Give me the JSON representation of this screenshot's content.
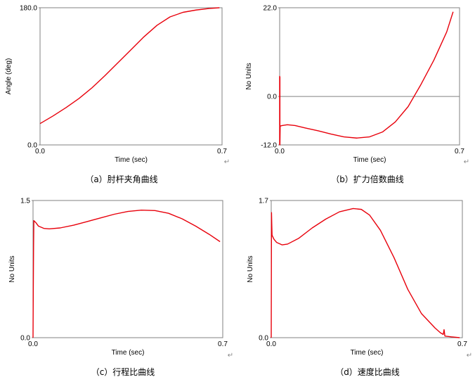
{
  "chart_data": [
    {
      "type": "line",
      "title": "",
      "xlabel": "Time (sec)",
      "ylabel": "Angle (deg)",
      "xlim": [
        0.0,
        0.7
      ],
      "ylim": [
        0.0,
        180.0
      ],
      "xticks": [
        "0.0",
        "0.7"
      ],
      "yticks": [
        "0.0",
        "180.0"
      ],
      "grid": false,
      "zero_line": false,
      "caption": "（a）肘杆夹角曲线",
      "caption_mark": "↵",
      "series": [
        {
          "color": "#e8000b",
          "x": [
            0.0,
            0.05,
            0.1,
            0.15,
            0.2,
            0.25,
            0.3,
            0.35,
            0.4,
            0.45,
            0.5,
            0.55,
            0.6,
            0.65,
            0.69
          ],
          "y": [
            28,
            38,
            49,
            61,
            75,
            91,
            108,
            125,
            142,
            157,
            168,
            174,
            177,
            179,
            180
          ]
        }
      ]
    },
    {
      "type": "line",
      "title": "",
      "xlabel": "Time (sec)",
      "ylabel": "No Units",
      "xlim": [
        0.0,
        0.7
      ],
      "ylim": [
        -12.0,
        22.0
      ],
      "xticks": [
        "0.0",
        "0.7"
      ],
      "yticks": [
        "-12.0",
        "0.0",
        "22.0"
      ],
      "grid": false,
      "zero_line": true,
      "caption": "（b）扩力倍数曲线",
      "caption_mark": "↵",
      "series": [
        {
          "color": "#e8000b",
          "x": [
            0.0,
            0.0,
            0.001,
            0.001,
            0.002,
            0.003,
            0.01,
            0.03,
            0.06,
            0.1,
            0.15,
            0.2,
            0.25,
            0.3,
            0.35,
            0.4,
            0.45,
            0.5,
            0.55,
            0.6,
            0.65,
            0.675
          ],
          "y": [
            -12.0,
            5.0,
            4.8,
            -12.0,
            -7.5,
            -7.3,
            -7.2,
            -7.0,
            -7.2,
            -7.8,
            -8.5,
            -9.3,
            -10.0,
            -10.3,
            -10.0,
            -8.8,
            -6.3,
            -2.5,
            3.0,
            9.0,
            16.0,
            21.0
          ]
        }
      ]
    },
    {
      "type": "line",
      "title": "",
      "xlabel": "Time (sec)",
      "ylabel": "No Units",
      "xlim": [
        0.0,
        0.7
      ],
      "ylim": [
        0.0,
        1.5
      ],
      "xticks": [
        "0.0",
        "0.7"
      ],
      "yticks": [
        "0.0",
        "1.5"
      ],
      "grid": false,
      "zero_line": false,
      "caption": "（c）行程比曲线",
      "caption_mark": "↵",
      "series": [
        {
          "color": "#e8000b",
          "x": [
            0.0,
            0.001,
            0.002,
            0.003,
            0.01,
            0.02,
            0.04,
            0.06,
            0.1,
            0.15,
            0.2,
            0.25,
            0.3,
            0.35,
            0.4,
            0.45,
            0.5,
            0.55,
            0.6,
            0.65,
            0.69
          ],
          "y": [
            0.0,
            0.55,
            1.0,
            1.28,
            1.26,
            1.22,
            1.195,
            1.19,
            1.2,
            1.23,
            1.27,
            1.31,
            1.35,
            1.38,
            1.395,
            1.39,
            1.36,
            1.3,
            1.22,
            1.13,
            1.05
          ]
        }
      ]
    },
    {
      "type": "line",
      "title": "",
      "xlabel": "Time (sec)",
      "ylabel": "No Units",
      "xlim": [
        0.0,
        0.7
      ],
      "ylim": [
        0.0,
        1.7
      ],
      "xticks": [
        "0.0",
        "0.7"
      ],
      "yticks": [
        "0.0",
        "1.7"
      ],
      "grid": false,
      "zero_line": false,
      "caption": "（d）速度比曲线",
      "caption_mark": "↵",
      "series": [
        {
          "color": "#e8000b",
          "x": [
            0.0,
            0.001,
            0.002,
            0.003,
            0.01,
            0.02,
            0.04,
            0.06,
            0.1,
            0.15,
            0.2,
            0.25,
            0.3,
            0.33,
            0.36,
            0.4,
            0.45,
            0.5,
            0.55,
            0.6,
            0.62,
            0.63,
            0.633,
            0.636,
            0.66,
            0.69
          ],
          "y": [
            0.0,
            1.55,
            1.4,
            1.27,
            1.22,
            1.18,
            1.15,
            1.16,
            1.23,
            1.36,
            1.47,
            1.56,
            1.6,
            1.59,
            1.52,
            1.33,
            0.99,
            0.6,
            0.3,
            0.12,
            0.06,
            0.04,
            0.1,
            0.02,
            0.01,
            0.0
          ]
        }
      ]
    }
  ]
}
